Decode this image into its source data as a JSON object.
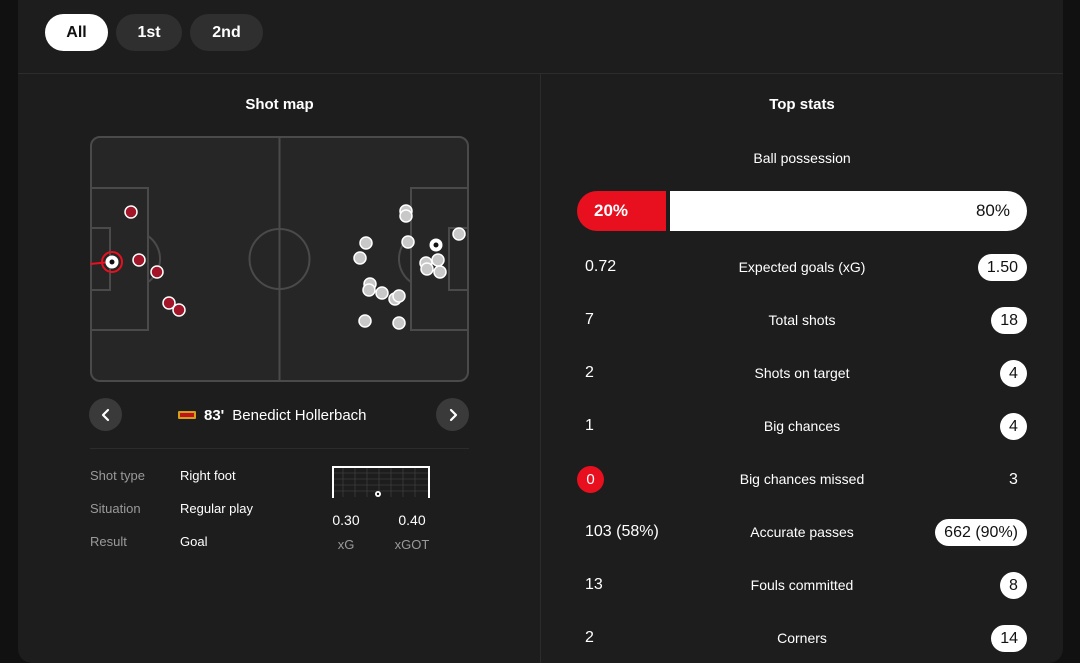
{
  "periods": {
    "all": "All",
    "first": "1st",
    "second": "2nd"
  },
  "shot_map": {
    "title": "Shot map",
    "selected": {
      "minute": "83'",
      "player": "Benedict Hollerbach",
      "team_logo": "team-crest-icon",
      "shot_type_label": "Shot type",
      "shot_type": "Right foot",
      "situation_label": "Situation",
      "situation": "Regular play",
      "result_label": "Result",
      "result": "Goal",
      "xg": "0.30",
      "xg_label": "xG",
      "xgot": "0.40",
      "xgot_label": "xGOT"
    }
  },
  "top_stats": {
    "title": "Top stats",
    "possession": {
      "label": "Ball possession",
      "home": "20%",
      "away": "80%",
      "home_pct": 20
    },
    "rows": [
      {
        "label": "Expected goals (xG)",
        "home": "0.72",
        "away": "1.50"
      },
      {
        "label": "Total shots",
        "home": "7",
        "away": "18"
      },
      {
        "label": "Shots on target",
        "home": "2",
        "away": "4"
      },
      {
        "label": "Big chances",
        "home": "1",
        "away": "4"
      },
      {
        "label": "Big chances missed",
        "home": "0",
        "away": "3"
      },
      {
        "label": "Accurate passes",
        "home": "103 (58%)",
        "away": "662 (90%)"
      },
      {
        "label": "Fouls committed",
        "home": "13",
        "away": "8"
      },
      {
        "label": "Corners",
        "home": "2",
        "away": "14"
      }
    ]
  },
  "colors": {
    "home": "#e8101f",
    "home_shot": "#a3162a",
    "away_shot": "#c8c8c8",
    "bg": "#1d1d1d"
  }
}
